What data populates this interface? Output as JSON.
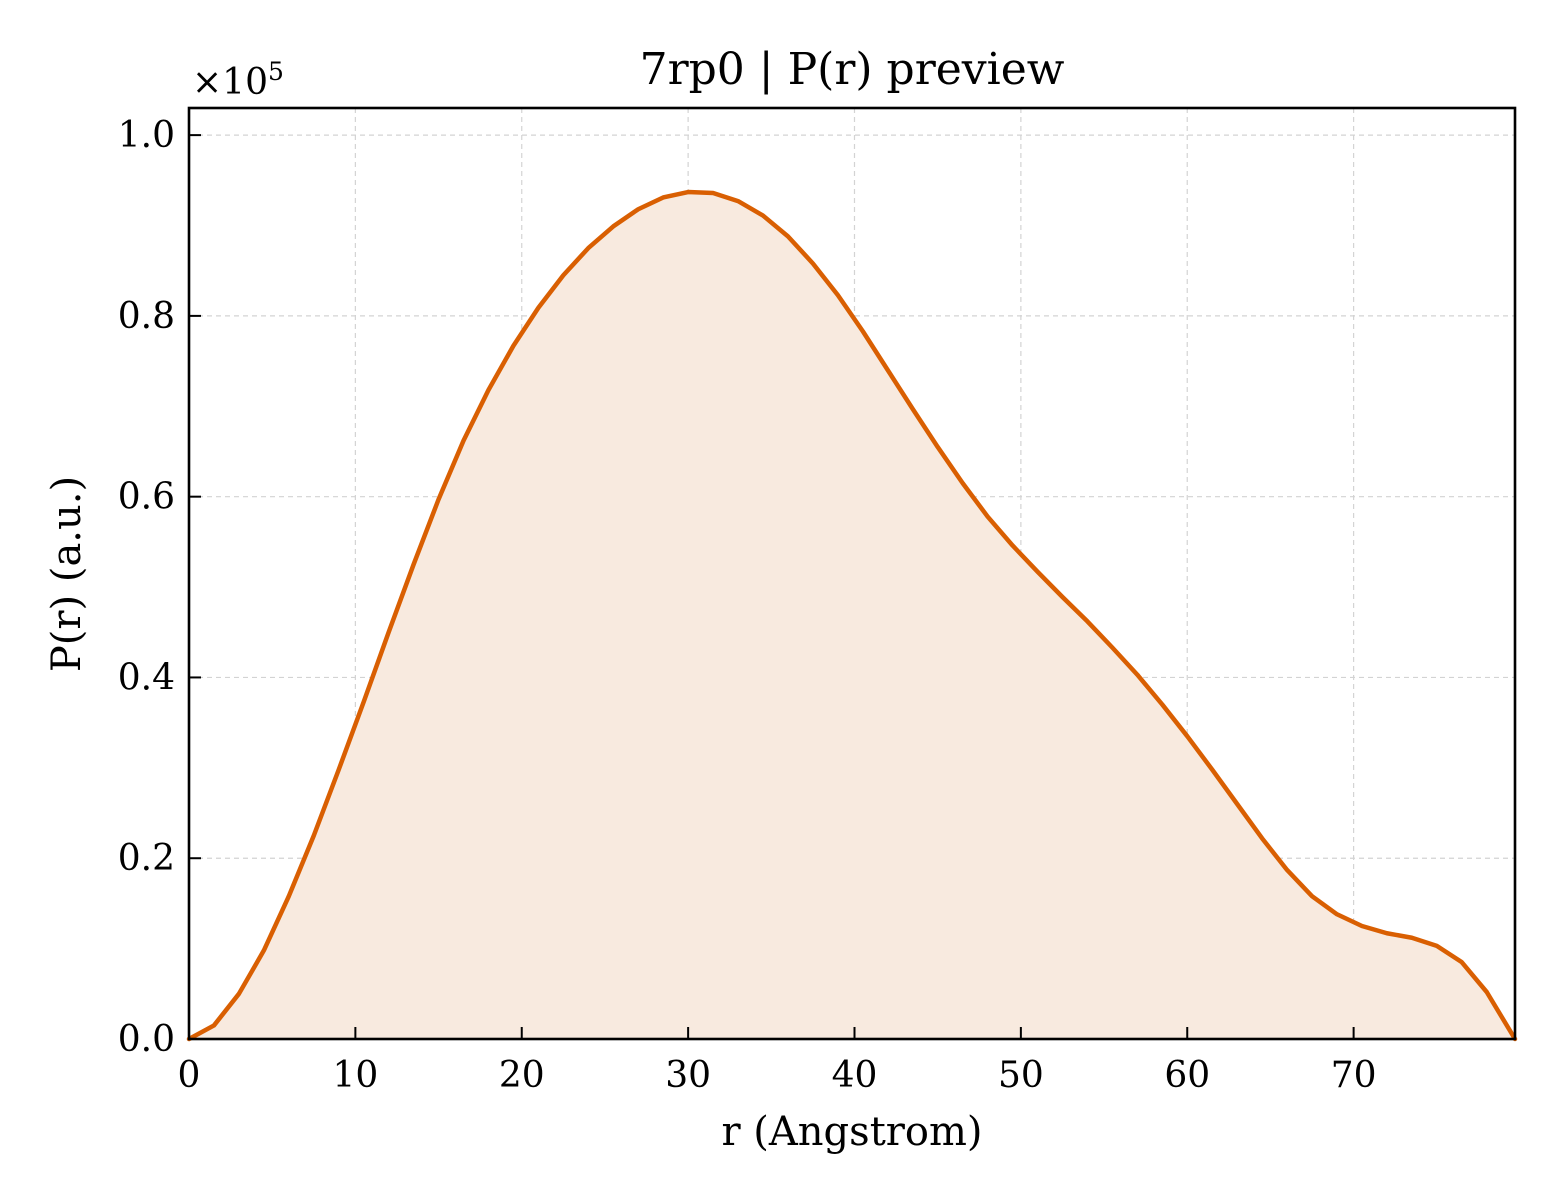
{
  "chart_data": {
    "type": "area",
    "title": "7rp0 | P(r) preview",
    "xlabel": "r (Angstrom)",
    "ylabel": "P(r) (a.u.)",
    "y_multiplier": {
      "base": "×10",
      "exponent": "5"
    },
    "xlim": [
      0,
      79.7
    ],
    "ylim": [
      0,
      1.03
    ],
    "xticks": [
      0,
      10,
      20,
      30,
      40,
      50,
      60,
      70
    ],
    "xtick_labels": [
      "0",
      "10",
      "20",
      "30",
      "40",
      "50",
      "60",
      "70"
    ],
    "yticks": [
      0.0,
      0.2,
      0.4,
      0.6,
      0.8,
      1.0
    ],
    "ytick_labels": [
      "0.0",
      "0.2",
      "0.4",
      "0.6",
      "0.8",
      "1.0"
    ],
    "grid": true,
    "legend": "none",
    "series": [
      {
        "line_color": "#d95f02",
        "fill_color": "#f8eadf",
        "x": [
          0,
          1.5,
          3.0,
          4.5,
          6.0,
          7.5,
          9.0,
          10.5,
          12.0,
          13.5,
          15.0,
          16.5,
          18.0,
          19.5,
          21.0,
          22.5,
          24.0,
          25.5,
          27.0,
          28.5,
          30.0,
          31.5,
          33.0,
          34.5,
          36.0,
          37.5,
          39.0,
          40.5,
          42.0,
          43.5,
          45.0,
          46.5,
          48.0,
          49.5,
          51.0,
          52.5,
          54.0,
          55.5,
          57.0,
          58.5,
          60.0,
          61.5,
          63.0,
          64.5,
          66.0,
          67.5,
          69.0,
          70.5,
          72.0,
          73.5,
          75.0,
          76.5,
          78.0,
          79.7
        ],
        "values": [
          0.0,
          0.015,
          0.05,
          0.098,
          0.158,
          0.225,
          0.298,
          0.373,
          0.45,
          0.525,
          0.597,
          0.662,
          0.718,
          0.767,
          0.809,
          0.845,
          0.875,
          0.899,
          0.918,
          0.931,
          0.937,
          0.936,
          0.927,
          0.911,
          0.888,
          0.858,
          0.823,
          0.783,
          0.74,
          0.697,
          0.655,
          0.615,
          0.578,
          0.546,
          0.517,
          0.489,
          0.462,
          0.433,
          0.403,
          0.37,
          0.335,
          0.298,
          0.26,
          0.222,
          0.187,
          0.158,
          0.138,
          0.125,
          0.117,
          0.112,
          0.103,
          0.085,
          0.052,
          0.0
        ]
      }
    ]
  }
}
